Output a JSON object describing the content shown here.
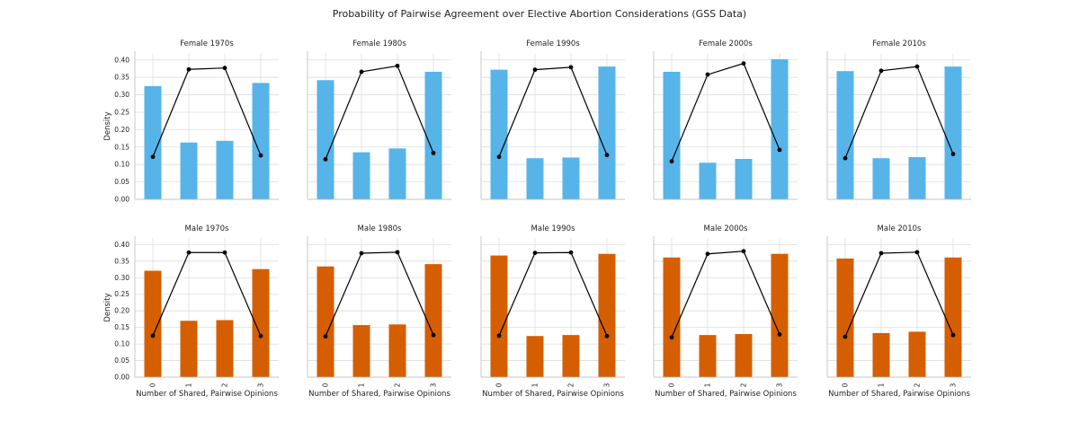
{
  "title": "Probability of Pairwise Agreement over Elective Abortion Considerations (GSS Data)",
  "colors": {
    "female": "#56b4e9",
    "male": "#d55e00",
    "line": "#000000"
  },
  "chart_data": [
    {
      "type": "bar",
      "title": "Female 1970s",
      "group": "female",
      "categories": [
        "0",
        "1",
        "2",
        "3"
      ],
      "values": [
        0.325,
        0.163,
        0.168,
        0.334
      ],
      "line_values": [
        0.122,
        0.373,
        0.377,
        0.126
      ],
      "xlabel": "",
      "ylabel": "Density",
      "ylim": [
        0,
        0.42
      ],
      "yticks": [
        "0.00",
        "0.05",
        "0.10",
        "0.15",
        "0.20",
        "0.25",
        "0.30",
        "0.35",
        "0.40"
      ]
    },
    {
      "type": "bar",
      "title": "Female 1980s",
      "group": "female",
      "categories": [
        "0",
        "1",
        "2",
        "3"
      ],
      "values": [
        0.342,
        0.135,
        0.146,
        0.366
      ],
      "line_values": [
        0.115,
        0.366,
        0.383,
        0.133
      ],
      "xlabel": "",
      "ylabel": "",
      "ylim": [
        0,
        0.42
      ]
    },
    {
      "type": "bar",
      "title": "Female 1990s",
      "group": "female",
      "categories": [
        "0",
        "1",
        "2",
        "3"
      ],
      "values": [
        0.372,
        0.118,
        0.12,
        0.381
      ],
      "line_values": [
        0.122,
        0.372,
        0.379,
        0.127
      ],
      "xlabel": "",
      "ylabel": "",
      "ylim": [
        0,
        0.42
      ]
    },
    {
      "type": "bar",
      "title": "Female 2000s",
      "group": "female",
      "categories": [
        "0",
        "1",
        "2",
        "3"
      ],
      "values": [
        0.366,
        0.105,
        0.116,
        0.402
      ],
      "line_values": [
        0.109,
        0.358,
        0.39,
        0.142
      ],
      "xlabel": "",
      "ylabel": "",
      "ylim": [
        0,
        0.42
      ]
    },
    {
      "type": "bar",
      "title": "Female 2010s",
      "group": "female",
      "categories": [
        "0",
        "1",
        "2",
        "3"
      ],
      "values": [
        0.368,
        0.118,
        0.121,
        0.381
      ],
      "line_values": [
        0.118,
        0.369,
        0.381,
        0.13
      ],
      "xlabel": "",
      "ylabel": "",
      "ylim": [
        0,
        0.42
      ]
    },
    {
      "type": "bar",
      "title": "Male 1970s",
      "group": "male",
      "categories": [
        "0",
        "1",
        "2",
        "3"
      ],
      "values": [
        0.321,
        0.17,
        0.172,
        0.326
      ],
      "line_values": [
        0.125,
        0.376,
        0.376,
        0.124
      ],
      "xlabel": "Number of Shared, Pairwise Opinions",
      "ylabel": "Density",
      "ylim": [
        0,
        0.42
      ],
      "yticks": [
        "0.00",
        "0.05",
        "0.10",
        "0.15",
        "0.20",
        "0.25",
        "0.30",
        "0.35",
        "0.40"
      ]
    },
    {
      "type": "bar",
      "title": "Male 1980s",
      "group": "male",
      "categories": [
        "0",
        "1",
        "2",
        "3"
      ],
      "values": [
        0.334,
        0.157,
        0.159,
        0.341
      ],
      "line_values": [
        0.123,
        0.374,
        0.377,
        0.127
      ],
      "xlabel": "Number of Shared, Pairwise Opinions",
      "ylabel": "",
      "ylim": [
        0,
        0.42
      ]
    },
    {
      "type": "bar",
      "title": "Male 1990s",
      "group": "male",
      "categories": [
        "0",
        "1",
        "2",
        "3"
      ],
      "values": [
        0.367,
        0.124,
        0.127,
        0.372
      ],
      "line_values": [
        0.125,
        0.375,
        0.376,
        0.124
      ],
      "xlabel": "Number of Shared, Pairwise Opinions",
      "ylabel": "",
      "ylim": [
        0,
        0.42
      ]
    },
    {
      "type": "bar",
      "title": "Male 2000s",
      "group": "male",
      "categories": [
        "0",
        "1",
        "2",
        "3"
      ],
      "values": [
        0.361,
        0.127,
        0.13,
        0.372
      ],
      "line_values": [
        0.12,
        0.372,
        0.38,
        0.129
      ],
      "xlabel": "Number of Shared, Pairwise Opinions",
      "ylabel": "",
      "ylim": [
        0,
        0.42
      ]
    },
    {
      "type": "bar",
      "title": "Male 2010s",
      "group": "male",
      "categories": [
        "0",
        "1",
        "2",
        "3"
      ],
      "values": [
        0.358,
        0.133,
        0.137,
        0.361
      ],
      "line_values": [
        0.122,
        0.374,
        0.377,
        0.127
      ],
      "xlabel": "Number of Shared, Pairwise Opinions",
      "ylabel": "",
      "ylim": [
        0,
        0.42
      ]
    }
  ]
}
